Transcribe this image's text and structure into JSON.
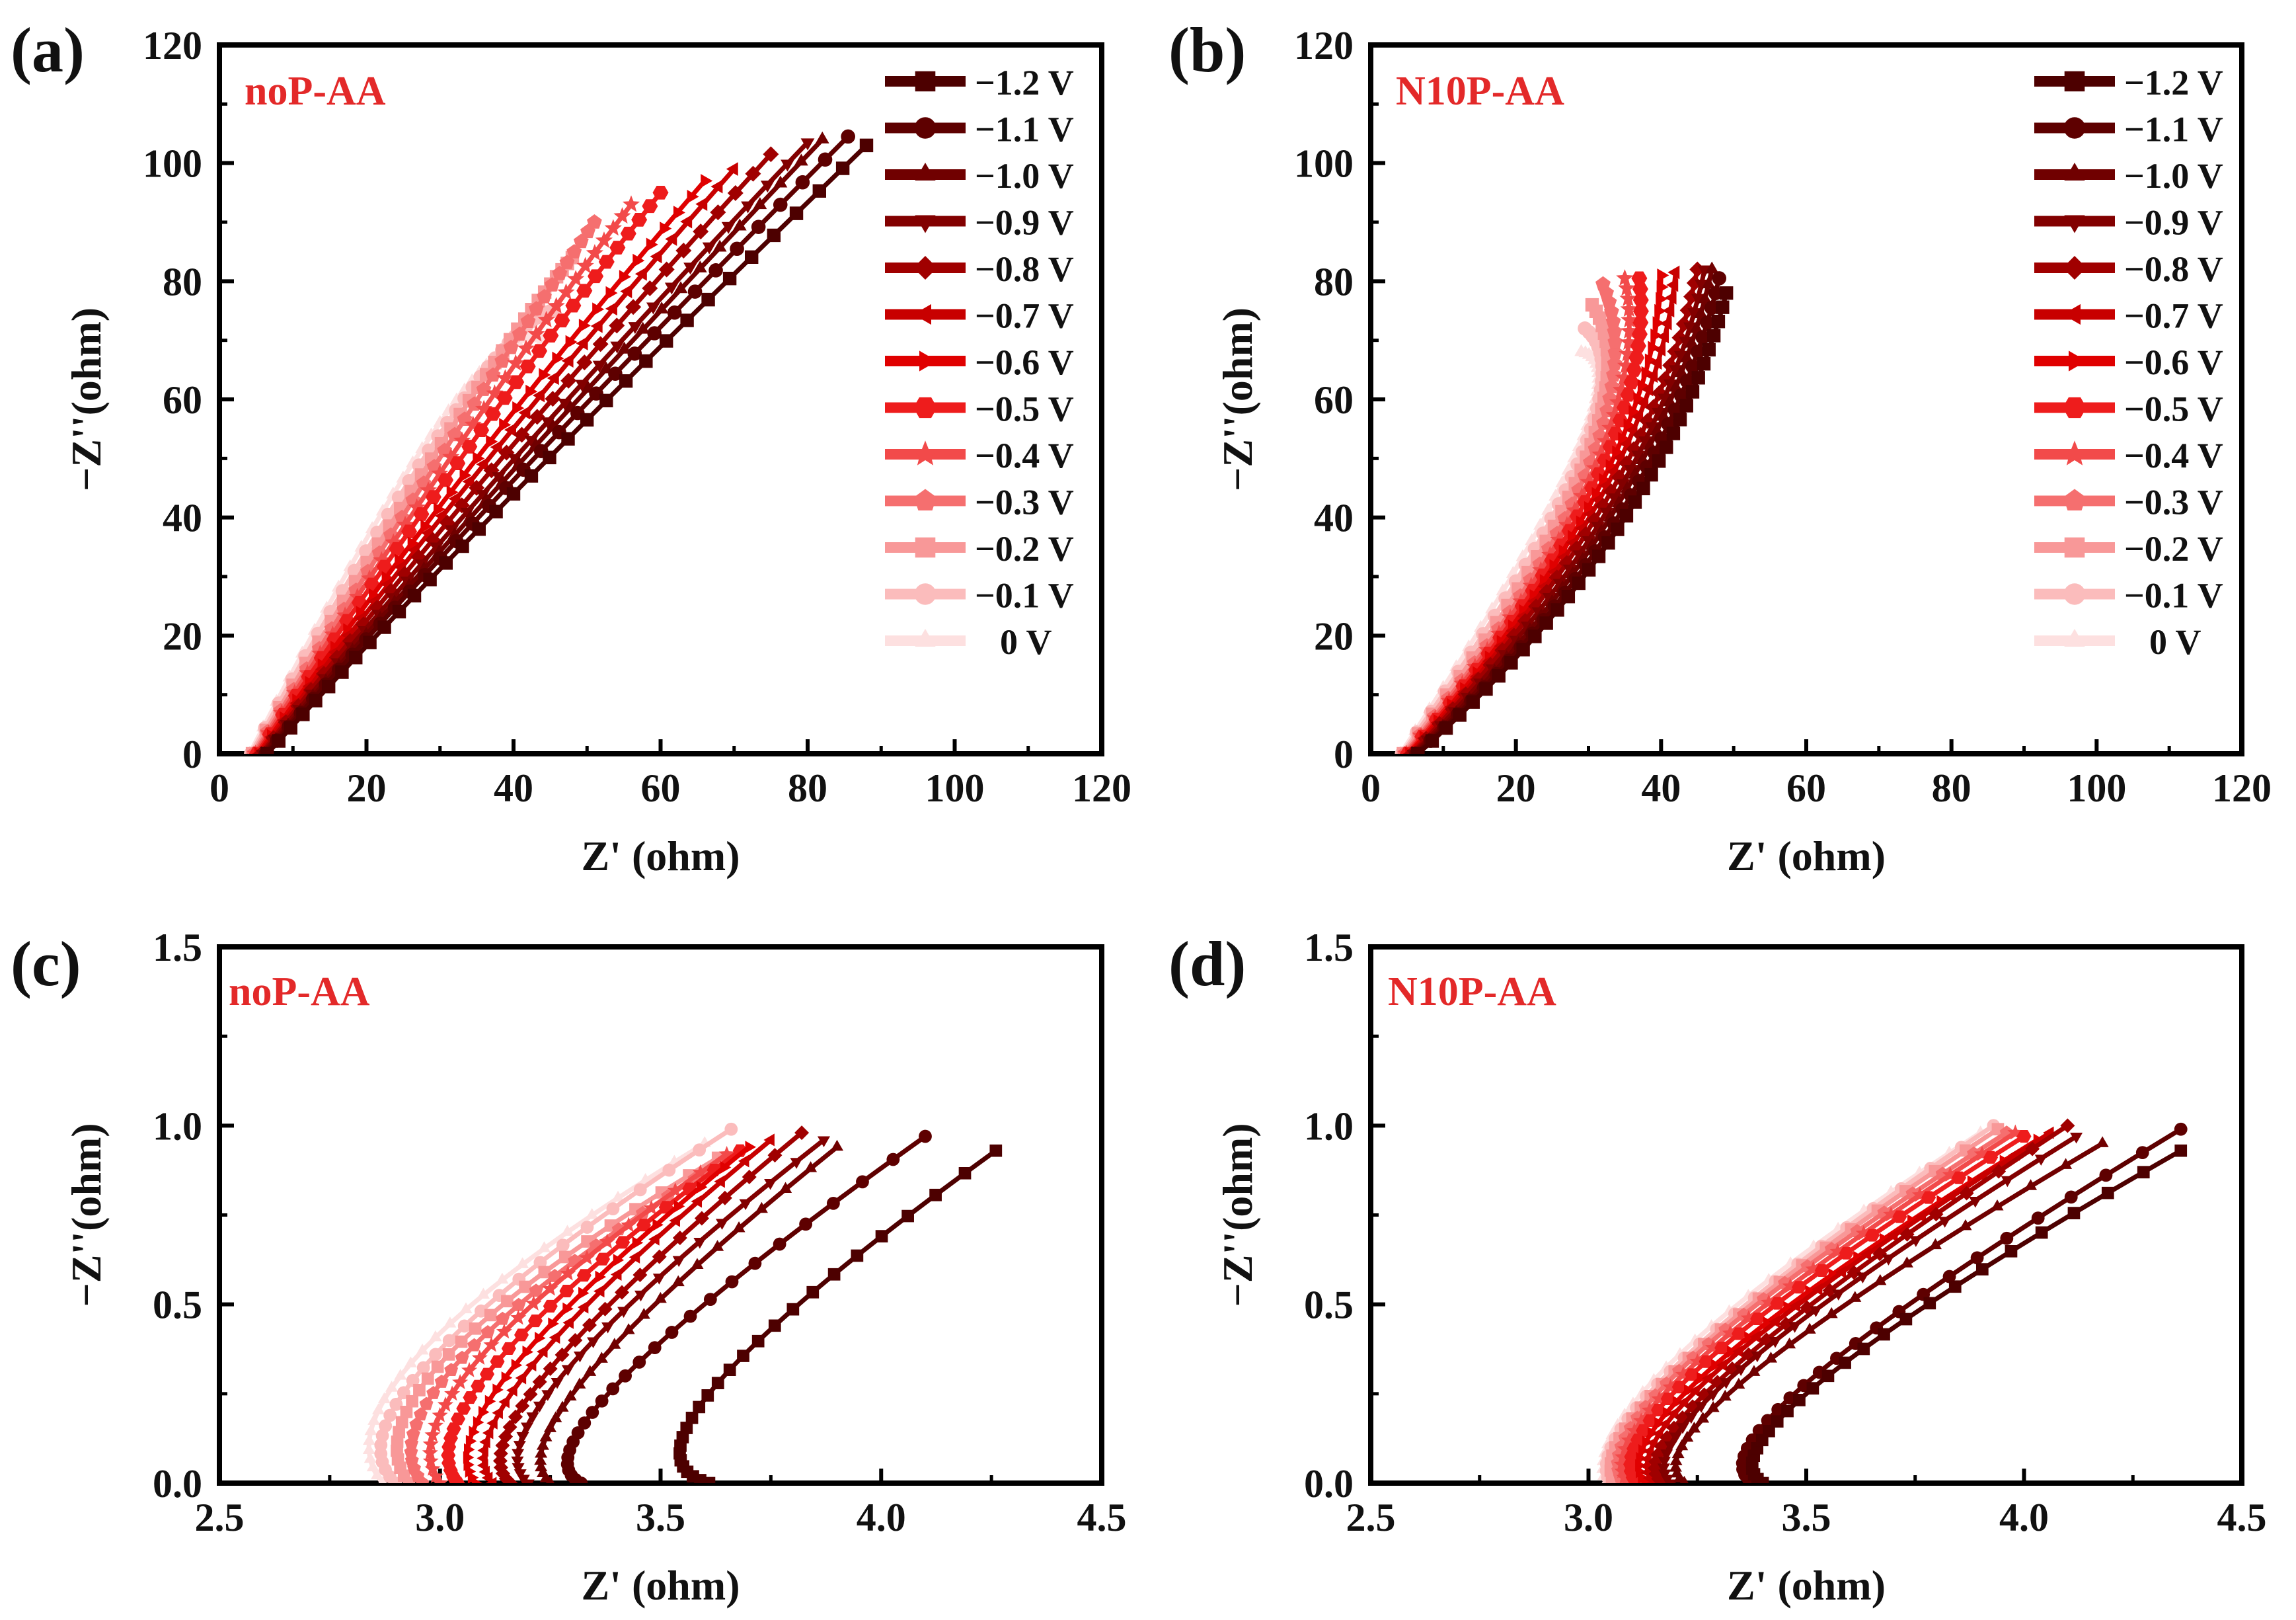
{
  "figure": {
    "legend_labels": [
      "−1.2 V",
      "−1.1 V",
      "−1.0 V",
      "−0.9 V",
      "−0.8 V",
      "−0.7 V",
      "−0.6 V",
      "−0.5 V",
      "−0.4 V",
      "−0.3 V",
      "−0.2 V",
      "−0.1 V",
      "0 V"
    ],
    "colors": [
      "#4d0000",
      "#5e0000",
      "#700000",
      "#820000",
      "#a00000",
      "#c80000",
      "#e00000",
      "#ee1c1c",
      "#f24a4a",
      "#f56f6f",
      "#f89898",
      "#fbbcbc",
      "#fde0e0"
    ],
    "markers": [
      "square",
      "circle",
      "triangle-up",
      "triangle-down",
      "diamond",
      "triangle-left",
      "triangle-right",
      "hexagon",
      "star",
      "pentagon",
      "square",
      "circle",
      "triangle-up"
    ]
  },
  "chart_data": [
    {
      "panel": "(a)",
      "sample": "noP-AA",
      "type": "line",
      "xlabel": "Z' (ohm)",
      "ylabel": "−Z''(ohm)",
      "xlim": [
        0,
        120
      ],
      "ylim": [
        0,
        120
      ],
      "xticks": [
        "0",
        "20",
        "40",
        "60",
        "80",
        "100",
        "120"
      ],
      "yticks": [
        "0",
        "20",
        "40",
        "60",
        "80",
        "100",
        "120"
      ],
      "legend": true,
      "series": [
        {
          "name": "−1.2 V",
          "start": [
            6.5,
            0
          ],
          "mid": [
            40,
            44
          ],
          "end": [
            88,
            103
          ]
        },
        {
          "name": "−1.1 V",
          "start": [
            6.3,
            0
          ],
          "mid": [
            39,
            45
          ],
          "end": [
            85.5,
            104.5
          ]
        },
        {
          "name": "−1.0 V",
          "start": [
            6.1,
            0
          ],
          "mid": [
            38.5,
            46
          ],
          "end": [
            82,
            104
          ]
        },
        {
          "name": "−0.9 V",
          "start": [
            5.9,
            0
          ],
          "mid": [
            38,
            47
          ],
          "end": [
            80,
            103.5
          ]
        },
        {
          "name": "−0.8 V",
          "start": [
            5.7,
            0
          ],
          "mid": [
            37,
            48
          ],
          "end": [
            75,
            101.5
          ]
        },
        {
          "name": "−0.7 V",
          "start": [
            5.5,
            0
          ],
          "mid": [
            36,
            49
          ],
          "end": [
            70,
            99
          ]
        },
        {
          "name": "−0.6 V",
          "start": [
            5.3,
            0
          ],
          "mid": [
            35,
            50
          ],
          "end": [
            66,
            97
          ]
        },
        {
          "name": "−0.5 V",
          "start": [
            5.1,
            0
          ],
          "mid": [
            34,
            52
          ],
          "end": [
            60,
            95
          ]
        },
        {
          "name": "−0.4 V",
          "start": [
            4.9,
            0
          ],
          "mid": [
            33,
            53
          ],
          "end": [
            56,
            93
          ]
        },
        {
          "name": "−0.3 V",
          "start": [
            4.7,
            0
          ],
          "mid": [
            32,
            54
          ],
          "end": [
            51,
            90
          ]
        },
        {
          "name": "−0.2 V",
          "start": [
            4.5,
            0
          ],
          "mid": [
            31.5,
            55
          ],
          "end": [
            48,
            84
          ]
        },
        {
          "name": "−0.1 V",
          "start": [
            4.3,
            0
          ],
          "mid": [
            31,
            56
          ],
          "end": [
            45.5,
            75
          ]
        },
        {
          "name": "0 V",
          "start": [
            4.1,
            0
          ],
          "mid": [
            30,
            56
          ],
          "end": [
            44,
            70
          ]
        }
      ]
    },
    {
      "panel": "(b)",
      "sample": "N10P-AA",
      "type": "line",
      "xlabel": "Z' (ohm)",
      "ylabel": "−Z''(ohm)",
      "xlim": [
        0,
        120
      ],
      "ylim": [
        0,
        120
      ],
      "xticks": [
        "0",
        "20",
        "40",
        "60",
        "80",
        "100",
        "120"
      ],
      "yticks": [
        "0",
        "20",
        "40",
        "60",
        "80",
        "100",
        "120"
      ],
      "legend": true,
      "series": [
        {
          "name": "−1.2 V",
          "start": [
            6.5,
            0
          ],
          "mid": [
            34,
            38
          ],
          "end": [
            49,
            78
          ]
        },
        {
          "name": "−1.1 V",
          "start": [
            6.3,
            0
          ],
          "mid": [
            33.5,
            39
          ],
          "end": [
            48,
            80.5
          ]
        },
        {
          "name": "−1.0 V",
          "start": [
            6.1,
            0
          ],
          "mid": [
            33,
            40
          ],
          "end": [
            47,
            82
          ]
        },
        {
          "name": "−0.9 V",
          "start": [
            5.9,
            0
          ],
          "mid": [
            32.5,
            41
          ],
          "end": [
            46,
            82
          ]
        },
        {
          "name": "−0.8 V",
          "start": [
            5.7,
            0
          ],
          "mid": [
            32,
            42
          ],
          "end": [
            45,
            82
          ]
        },
        {
          "name": "−0.7 V",
          "start": [
            5.5,
            0
          ],
          "mid": [
            31.5,
            43
          ],
          "end": [
            42,
            81.5
          ]
        },
        {
          "name": "−0.6 V",
          "start": [
            5.3,
            0
          ],
          "mid": [
            31,
            44
          ],
          "end": [
            40,
            81
          ]
        },
        {
          "name": "−0.5 V",
          "start": [
            5.1,
            0
          ],
          "mid": [
            30.5,
            45
          ],
          "end": [
            37,
            80.5
          ]
        },
        {
          "name": "−0.4 V",
          "start": [
            4.9,
            0
          ],
          "mid": [
            30,
            46
          ],
          "end": [
            35,
            80.5
          ]
        },
        {
          "name": "−0.3 V",
          "start": [
            4.7,
            0
          ],
          "mid": [
            29.5,
            47
          ],
          "end": [
            32,
            79.5
          ]
        },
        {
          "name": "−0.2 V",
          "start": [
            4.5,
            0
          ],
          "mid": [
            29,
            48
          ],
          "end": [
            30.5,
            76
          ]
        },
        {
          "name": "−0.1 V",
          "start": [
            4.3,
            0
          ],
          "mid": [
            28.5,
            49
          ],
          "end": [
            29.5,
            72
          ]
        },
        {
          "name": "0 V",
          "start": [
            4.1,
            0
          ],
          "mid": [
            28,
            50
          ],
          "end": [
            29,
            68
          ]
        }
      ]
    },
    {
      "panel": "(c)",
      "sample": "noP-AA",
      "type": "line",
      "xlabel": "Z' (ohm)",
      "ylabel": "−Z''(ohm)",
      "xlim": [
        2.5,
        4.5
      ],
      "ylim": [
        0,
        1.5
      ],
      "xticks": [
        "2.5",
        "3.0",
        "3.5",
        "4.0",
        "4.5"
      ],
      "yticks": [
        "0.0",
        "0.5",
        "1.0",
        "1.5"
      ],
      "legend": false,
      "series": [
        {
          "name": "−1.2 V",
          "start": [
            3.61,
            0
          ],
          "mid": [
            3.63,
            0.28
          ],
          "end": [
            4.26,
            0.93
          ]
        },
        {
          "name": "−1.1 V",
          "start": [
            3.32,
            0
          ],
          "mid": [
            3.42,
            0.3
          ],
          "end": [
            4.1,
            0.97
          ]
        },
        {
          "name": "−1.0 V",
          "start": [
            3.25,
            0
          ],
          "mid": [
            3.34,
            0.31
          ],
          "end": [
            3.9,
            0.94
          ]
        },
        {
          "name": "−0.9 V",
          "start": [
            3.2,
            0
          ],
          "mid": [
            3.29,
            0.32
          ],
          "end": [
            3.87,
            0.96
          ]
        },
        {
          "name": "−0.8 V",
          "start": [
            3.16,
            0
          ],
          "mid": [
            3.25,
            0.32
          ],
          "end": [
            3.82,
            0.98
          ]
        },
        {
          "name": "−0.7 V",
          "start": [
            3.12,
            0
          ],
          "mid": [
            3.21,
            0.33
          ],
          "end": [
            3.75,
            0.96
          ]
        },
        {
          "name": "−0.6 V",
          "start": [
            3.08,
            0
          ],
          "mid": [
            3.17,
            0.33
          ],
          "end": [
            3.7,
            0.94
          ]
        },
        {
          "name": "−0.5 V",
          "start": [
            3.04,
            0
          ],
          "mid": [
            3.13,
            0.34
          ],
          "end": [
            3.68,
            0.93
          ]
        },
        {
          "name": "−0.4 V",
          "start": [
            3.0,
            0
          ],
          "mid": [
            3.09,
            0.35
          ],
          "end": [
            3.65,
            0.92
          ]
        },
        {
          "name": "−0.3 V",
          "start": [
            2.96,
            0
          ],
          "mid": [
            3.05,
            0.35
          ],
          "end": [
            3.64,
            0.9
          ]
        },
        {
          "name": "−0.2 V",
          "start": [
            2.93,
            0
          ],
          "mid": [
            3.02,
            0.36
          ],
          "end": [
            3.63,
            0.91
          ]
        },
        {
          "name": "−0.1 V",
          "start": [
            2.9,
            0
          ],
          "mid": [
            2.99,
            0.36
          ],
          "end": [
            3.66,
            0.99
          ]
        },
        {
          "name": "0 V",
          "start": [
            2.87,
            0
          ],
          "mid": [
            2.96,
            0.37
          ],
          "end": [
            3.6,
            0.95
          ]
        }
      ]
    },
    {
      "panel": "(d)",
      "sample": "N10P-AA",
      "type": "line",
      "xlabel": "Z' (ohm)",
      "ylabel": "−Z''(ohm)",
      "xlim": [
        2.5,
        4.5
      ],
      "ylim": [
        0,
        1.5
      ],
      "xticks": [
        "2.5",
        "3.0",
        "3.5",
        "4.0",
        "4.5"
      ],
      "yticks": [
        "0.0",
        "0.5",
        "1.0",
        "1.5"
      ],
      "legend": false,
      "series": [
        {
          "name": "−1.2 V",
          "start": [
            3.4,
            0
          ],
          "mid": [
            3.55,
            0.3
          ],
          "end": [
            4.36,
            0.93
          ]
        },
        {
          "name": "−1.1 V",
          "start": [
            3.38,
            0
          ],
          "mid": [
            3.53,
            0.31
          ],
          "end": [
            4.36,
            0.99
          ]
        },
        {
          "name": "−1.0 V",
          "start": [
            3.22,
            0
          ],
          "mid": [
            3.38,
            0.31
          ],
          "end": [
            4.18,
            0.95
          ]
        },
        {
          "name": "−0.9 V",
          "start": [
            3.19,
            0
          ],
          "mid": [
            3.35,
            0.32
          ],
          "end": [
            4.12,
            0.97
          ]
        },
        {
          "name": "−0.8 V",
          "start": [
            3.17,
            0
          ],
          "mid": [
            3.33,
            0.32
          ],
          "end": [
            4.1,
            1.0
          ]
        },
        {
          "name": "−0.7 V",
          "start": [
            3.15,
            0
          ],
          "mid": [
            3.31,
            0.33
          ],
          "end": [
            4.06,
            0.98
          ]
        },
        {
          "name": "−0.6 V",
          "start": [
            3.13,
            0
          ],
          "mid": [
            3.29,
            0.33
          ],
          "end": [
            4.03,
            0.96
          ]
        },
        {
          "name": "−0.5 V",
          "start": [
            3.11,
            0
          ],
          "mid": [
            3.27,
            0.34
          ],
          "end": [
            4.0,
            0.97
          ]
        },
        {
          "name": "−0.4 V",
          "start": [
            3.09,
            0
          ],
          "mid": [
            3.25,
            0.34
          ],
          "end": [
            3.98,
            0.98
          ]
        },
        {
          "name": "−0.3 V",
          "start": [
            3.08,
            0
          ],
          "mid": [
            3.24,
            0.35
          ],
          "end": [
            3.96,
            0.98
          ]
        },
        {
          "name": "−0.2 V",
          "start": [
            3.06,
            0
          ],
          "mid": [
            3.23,
            0.35
          ],
          "end": [
            3.94,
            0.99
          ]
        },
        {
          "name": "−0.1 V",
          "start": [
            3.05,
            0
          ],
          "mid": [
            3.22,
            0.35
          ],
          "end": [
            3.93,
            1.0
          ]
        },
        {
          "name": "0 V",
          "start": [
            3.04,
            0
          ],
          "mid": [
            3.21,
            0.36
          ],
          "end": [
            3.9,
            0.98
          ]
        }
      ]
    }
  ]
}
